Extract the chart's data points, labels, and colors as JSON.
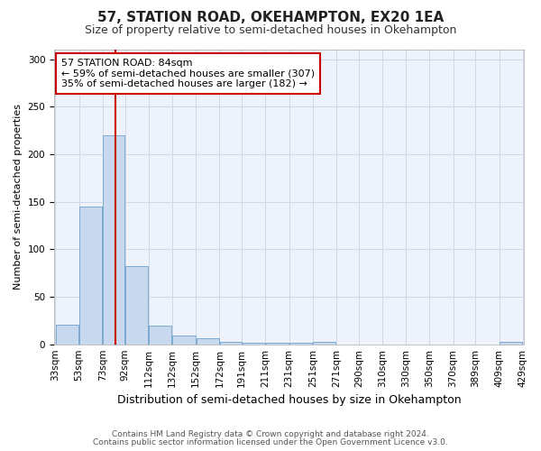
{
  "title": "57, STATION ROAD, OKEHAMPTON, EX20 1EA",
  "subtitle": "Size of property relative to semi-detached houses in Okehampton",
  "xlabel": "Distribution of semi-detached houses by size in Okehampton",
  "ylabel": "Number of semi-detached properties",
  "footer_line1": "Contains HM Land Registry data © Crown copyright and database right 2024.",
  "footer_line2": "Contains public sector information licensed under the Open Government Licence v3.0.",
  "annotation_title": "57 STATION ROAD: 84sqm",
  "annotation_line2": "← 59% of semi-detached houses are smaller (307)",
  "annotation_line3": "35% of semi-detached houses are larger (182) →",
  "property_size": 84,
  "bins": [
    33,
    53,
    73,
    92,
    112,
    132,
    152,
    172,
    191,
    211,
    231,
    251,
    271,
    290,
    310,
    330,
    350,
    370,
    389,
    409,
    429
  ],
  "values": [
    21,
    145,
    220,
    82,
    20,
    9,
    6,
    3,
    2,
    2,
    2,
    3,
    0,
    0,
    0,
    0,
    0,
    0,
    0,
    3
  ],
  "bar_color": "#c8d8ee",
  "bar_edge_color": "#7baad0",
  "vline_color": "#cc0000",
  "annotation_box_color": "#ffffff",
  "annotation_box_edge": "#cc0000",
  "grid_color": "#d0d8e8",
  "bg_color": "#ffffff",
  "plot_bg_color": "#eef2fa",
  "ylim": [
    0,
    310
  ],
  "yticks": [
    0,
    50,
    100,
    150,
    200,
    250,
    300
  ],
  "title_fontsize": 11,
  "subtitle_fontsize": 9,
  "ylabel_fontsize": 8,
  "xlabel_fontsize": 9,
  "tick_fontsize": 7.5,
  "footer_fontsize": 6.5,
  "annot_fontsize": 8
}
